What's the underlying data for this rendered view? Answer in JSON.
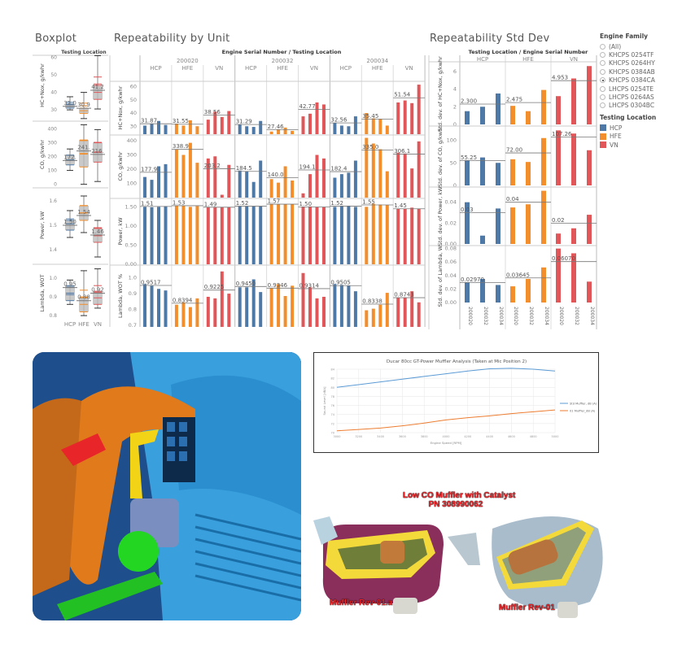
{
  "titles": {
    "boxplot": "Boxplot",
    "unit": "Repeatability by Unit",
    "stddev": "Repeatability Std Dev"
  },
  "colors": {
    "HCP": "#4e79a7",
    "HFE": "#f28e2b",
    "VN": "#e15759"
  },
  "locations": [
    "HCP",
    "HFE",
    "VN"
  ],
  "serials": [
    "200020",
    "200032",
    "200034"
  ],
  "boxplot": {
    "header": "Testing Location",
    "rows": [
      {
        "label": "HC+Nox, g/kwhr",
        "domain": [
          24,
          64
        ],
        "ticks": [
          "30",
          "40",
          "50",
          "60"
        ],
        "tickvals": [
          30,
          40,
          50,
          60
        ],
        "boxes": [
          {
            "min": 30,
            "q1": 31,
            "median": 32,
            "q3": 33,
            "max": 37.5,
            "label": "32.0"
          },
          {
            "min": 25,
            "q1": 28,
            "median": 30.9,
            "q3": 31,
            "max": 40,
            "label": "30.9"
          },
          {
            "min": 30.5,
            "q1": 36,
            "median": 41.2,
            "q3": 44,
            "max": 61,
            "label": "41.2"
          }
        ]
      },
      {
        "label": "CO, g/kwhr",
        "domain": [
          -20,
          450
        ],
        "ticks": [
          "0",
          "100",
          "200",
          "300",
          "400"
        ],
        "tickvals": [
          0,
          100,
          200,
          300,
          400
        ],
        "boxes": [
          {
            "min": 100,
            "q1": 140,
            "median": 172,
            "q3": 210,
            "max": 255,
            "label": "172."
          },
          {
            "min": 0,
            "q1": 125,
            "median": 241,
            "q3": 320,
            "max": 430,
            "label": "241."
          },
          {
            "min": 20,
            "q1": 160,
            "median": 216,
            "q3": 300,
            "max": 395,
            "label": "216."
          }
        ]
      },
      {
        "label": "Power, kW",
        "domain": [
          1.35,
          1.65
        ],
        "ticks": [
          "1.4",
          "1.5",
          "1.6"
        ],
        "tickvals": [
          1.4,
          1.5,
          1.6
        ],
        "boxes": [
          {
            "min": 1.45,
            "q1": 1.48,
            "median": 1.5,
            "q3": 1.52,
            "max": 1.56,
            "label": "1.50"
          },
          {
            "min": 1.47,
            "q1": 1.52,
            "median": 1.54,
            "q3": 1.58,
            "max": 1.62,
            "label": "1.54"
          },
          {
            "min": 1.37,
            "q1": 1.43,
            "median": 1.46,
            "q3": 1.49,
            "max": 1.52,
            "label": "1.46"
          }
        ]
      },
      {
        "label": "Lambda, WOT",
        "domain": [
          0.77,
          1.07
        ],
        "ticks": [
          "0.8",
          "0.9",
          "1.0"
        ],
        "tickvals": [
          0.8,
          0.9,
          1.0
        ],
        "boxes": [
          {
            "min": 0.86,
            "q1": 0.88,
            "median": 0.95,
            "q3": 0.96,
            "max": 0.99,
            "label": "0.95"
          },
          {
            "min": 0.8,
            "q1": 0.82,
            "median": 0.88,
            "q3": 0.9,
            "max": 1.04,
            "label": "0.88"
          },
          {
            "min": 0.84,
            "q1": 0.86,
            "median": 0.92,
            "q3": 0.93,
            "max": 1.05,
            "label": "0.92"
          }
        ]
      }
    ]
  },
  "chart_data": [
    {
      "type": "bar",
      "title": "Repeatability by Unit",
      "header": "Engine Serial Number / Testing Location",
      "rows": [
        {
          "label": "HC+Nox, g/kwhr",
          "ylim": [
            24,
            64
          ],
          "ticks": [
            30,
            40,
            50,
            60
          ],
          "tick_labels": [
            "30",
            "40",
            "50",
            "60"
          ],
          "cells": [
            [
              30.5,
              32,
              34,
              31
            ],
            [
              32,
              30.5,
              34.5,
              30
            ],
            [
              35,
              41,
              37,
              41.5
            ],
            [
              31.5,
              30,
              29.5,
              34
            ],
            [
              26,
              27.5,
              29,
              26.5
            ],
            [
              37.5,
              39.5,
              48,
              46.5
            ],
            [
              32.5,
              30.5,
              30,
              37.5
            ],
            [
              40,
              36,
              35.5,
              30.5
            ],
            [
              48,
              49.5,
              47.5,
              61.5
            ]
          ],
          "avg": [
            "31.87",
            "31.55",
            "38.56",
            "31.29",
            "27.46",
            "42.77",
            "32.56",
            "35.45",
            "51.54"
          ],
          "avgv": [
            31.87,
            31.55,
            38.56,
            31.29,
            27.46,
            42.77,
            32.56,
            35.45,
            51.54
          ]
        },
        {
          "label": "CO, g/kwhr",
          "ylim": [
            0,
            440
          ],
          "ticks": [
            100,
            200,
            300,
            400
          ],
          "tick_labels": [
            "100",
            "200",
            "300",
            "400"
          ],
          "cells": [
            [
              145,
              125,
              220,
              235
            ],
            [
              340,
              300,
              385,
              245
            ],
            [
              275,
              290,
              20,
              230
            ],
            [
              190,
              185,
              110,
              260
            ],
            [
              130,
              105,
              220,
              120
            ],
            [
              30,
              165,
              300,
              275
            ],
            [
              140,
              165,
              175,
              260
            ],
            [
              420,
              380,
              340,
              185
            ],
            [
              315,
              310,
              205,
              395
            ]
          ],
          "avg": [
            "177.9",
            "338.9",
            "203.2",
            "184.5",
            "140.0",
            "194.1",
            "182.4",
            "335.0",
            "306.1"
          ],
          "avgv": [
            177.9,
            338.9,
            203.2,
            184.5,
            140.0,
            194.1,
            182.4,
            335.0,
            306.1
          ]
        },
        {
          "label": "Power, kW",
          "ylim": [
            0,
            1.72
          ],
          "ticks": [
            0,
            0.5,
            1.0,
            1.5
          ],
          "tick_labels": [
            "0.00",
            "0.50",
            "1.00",
            "1.50"
          ],
          "cells": [
            [
              1.5,
              1.49,
              1.5,
              1.52
            ],
            [
              1.53,
              1.53,
              1.5,
              1.52
            ],
            [
              1.49,
              1.49,
              1.49,
              1.49
            ],
            [
              1.51,
              1.51,
              1.51,
              1.51
            ],
            [
              1.58,
              1.56,
              1.57,
              1.57
            ],
            [
              1.5,
              1.51,
              1.49,
              1.49
            ],
            [
              1.5,
              1.53,
              1.53,
              1.5
            ],
            [
              1.5,
              1.58,
              1.56,
              1.55
            ],
            [
              1.45,
              1.45,
              1.48,
              1.45
            ]
          ],
          "avg": [
            "1.51",
            "1.53",
            "1.49",
            "1.52",
            "1.57",
            "1.50",
            "1.52",
            "1.55",
            "1.45"
          ],
          "avgv": [
            1.51,
            1.53,
            1.49,
            1.52,
            1.57,
            1.5,
            1.52,
            1.55,
            1.45
          ]
        },
        {
          "label": "Lambda, WOT %",
          "ylim": [
            0.69,
            1.08
          ],
          "ticks": [
            0.7,
            0.8,
            0.9,
            1.0
          ],
          "tick_labels": [
            "0.7",
            "0.8",
            "0.9",
            "1.0"
          ],
          "cells": [
            [
              0.96,
              0.95,
              0.93,
              0.92
            ],
            [
              0.83,
              0.845,
              0.815,
              0.87
            ],
            [
              0.88,
              0.87,
              1.04,
              0.9
            ],
            [
              0.94,
              0.94,
              0.99,
              0.91
            ],
            [
              0.935,
              0.96,
              0.885,
              0.95
            ],
            [
              1.03,
              0.94,
              0.87,
              0.88
            ],
            [
              0.96,
              0.955,
              0.95,
              0.915
            ],
            [
              0.795,
              0.805,
              0.83,
              0.905
            ],
            [
              0.875,
              0.875,
              0.915,
              0.845
            ]
          ],
          "avg": [
            "0.9517",
            "0.8394",
            "0.9225",
            "0.9450",
            "0.9346",
            "0.9314",
            "0.9505",
            "0.8338",
            "0.8743"
          ],
          "avgv": [
            0.9517,
            0.8394,
            0.9225,
            0.945,
            0.9346,
            0.9314,
            0.9505,
            0.8338,
            0.8743
          ]
        }
      ]
    },
    {
      "type": "bar",
      "title": "Repeatability Std Dev",
      "header": "Testing Location / Engine Serial Number",
      "xlabels": [
        "200020",
        "200032",
        "200034"
      ],
      "rows": [
        {
          "label": "Std. dev. of HC+Nox, g/kwhr",
          "ylim": [
            0,
            6.9
          ],
          "ticks": [
            0,
            2,
            4,
            6
          ],
          "tick_labels": [
            "0",
            "2",
            "4",
            "6"
          ],
          "groups": [
            [
              1.5,
              2.0,
              3.5
            ],
            [
              2.1,
              1.5,
              3.9
            ],
            [
              3.2,
              5.2,
              6.6
            ]
          ],
          "avg": [
            "2.300",
            "2.475",
            "4.953"
          ],
          "avgv": [
            2.3,
            2.475,
            4.953
          ]
        },
        {
          "label": "Std. dev. of CO, g/kwhr",
          "ylim": [
            0,
            128
          ],
          "ticks": [
            0,
            50,
            100
          ],
          "tick_labels": [
            "0",
            "50",
            "100"
          ],
          "groups": [
            [
              55,
              62,
              50
            ],
            [
              58,
              52,
              105
            ],
            [
              122,
              115,
              78
            ]
          ],
          "avg": [
            "55.25",
            "72.00",
            "107.26"
          ],
          "avgv": [
            55.25,
            72.0,
            107.26
          ]
        },
        {
          "label": "Std. dev. of Power, kW",
          "ylim": [
            0,
            0.053
          ],
          "ticks": [
            0,
            0.02,
            0.04
          ],
          "tick_labels": [
            "0.00",
            "0.02",
            "0.04"
          ],
          "groups": [
            [
              0.04,
              0.008,
              0.034
            ],
            [
              0.035,
              0.038,
              0.051
            ],
            [
              0.01,
              0.015,
              0.028
            ]
          ],
          "avg": [
            "0.03",
            "0.04",
            "0.02"
          ],
          "avgv": [
            0.03,
            0.04,
            0.02
          ]
        },
        {
          "label": "Std. dev. of Lambda, W..",
          "ylim": [
            0,
            0.082
          ],
          "ticks": [
            0,
            0.02,
            0.04,
            0.06,
            0.08
          ],
          "tick_labels": [
            "0.00",
            "0.02",
            "0.04",
            "0.06",
            "0.08"
          ],
          "groups": [
            [
              0.03,
              0.035,
              0.026
            ],
            [
              0.024,
              0.035,
              0.052
            ],
            [
              0.08,
              0.073,
              0.031
            ]
          ],
          "avg": [
            "0.02970",
            "0.03645",
            "0.06070"
          ],
          "avgv": [
            0.0297,
            0.03645,
            0.0607
          ]
        }
      ]
    },
    {
      "type": "line",
      "title": "Ducar 80cc GT-Power Muffler Analysis (Taken at Mic Position 2)",
      "xlabel": "Engine Speed [RPM]",
      "ylabel": "Sound Level [dBA]",
      "x": [
        3000,
        3200,
        3400,
        3600,
        3800,
        4000,
        4200,
        4400,
        4600,
        4800,
        5000
      ],
      "xlim": [
        3000,
        5000
      ],
      "ylim": [
        70,
        84
      ],
      "yticks": [
        70,
        72,
        74,
        76,
        78,
        80,
        82,
        84
      ],
      "legend": "right",
      "series": [
        {
          "name": "Std Muffler, dB (A)",
          "color": "#5b9bd5",
          "values": [
            80.0,
            80.6,
            81.2,
            81.8,
            82.4,
            83.0,
            83.6,
            84.1,
            84.2,
            84.0,
            83.6
          ]
        },
        {
          "name": "01 Muffler_dB (A)",
          "color": "#ed7d31",
          "values": [
            70.4,
            70.7,
            71.0,
            71.5,
            72.1,
            72.8,
            73.3,
            73.7,
            74.2,
            74.6,
            75.0
          ]
        }
      ]
    }
  ],
  "legend": {
    "family_title": "Engine Family",
    "families": [
      "(All)",
      "KHCPS 0254TF",
      "KHCPS 0264HY",
      "KHCPS 0384AB",
      "KHCPS 0384CA",
      "LHCPS 0254TE",
      "LHCPS 0264AS",
      "LHCPS 0304BC"
    ],
    "selected_family": "KHCPS 0384CA",
    "location_title": "Testing Location",
    "locations": [
      "HCP",
      "HFE",
      "VN"
    ]
  },
  "mufflers": {
    "caption_line1": "Low CO Muffler with Catalyst",
    "caption_line2": "PN 308990062",
    "left_label": "Muffler Rev-01.a",
    "right_label": "Muffler Rev-01"
  }
}
